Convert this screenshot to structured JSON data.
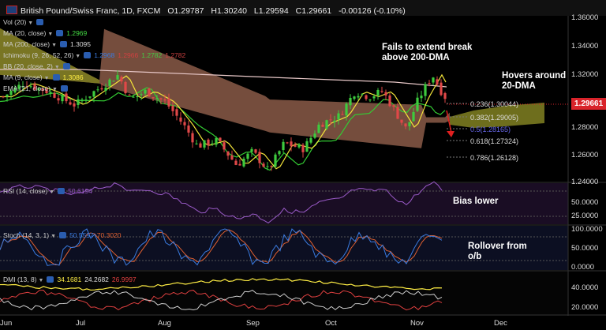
{
  "header": {
    "title": "British Pound/Swiss Franc, 1D, FXCM",
    "ohlc": [
      {
        "k": "O",
        "v": "1.29787"
      },
      {
        "k": "H",
        "v": "1.30240"
      },
      {
        "k": "L",
        "v": "1.29594"
      },
      {
        "k": "C",
        "v": "1.29661"
      }
    ],
    "change": "-0.00126 (-0.10%)"
  },
  "indicators": [
    {
      "label": "Vol (20)",
      "values": []
    },
    {
      "label": "MA (20, close)",
      "values": [
        {
          "v": "1.2969",
          "c": "#44dd44"
        }
      ]
    },
    {
      "label": "MA (200, close)",
      "values": [
        {
          "v": "1.3095",
          "c": "#ddd"
        }
      ]
    },
    {
      "label": "Ichimoku (9, 26, 52, 26)",
      "values": [
        {
          "v": "1.2968",
          "c": "#3a7be0"
        },
        {
          "v": "1.2966",
          "c": "#d04040"
        },
        {
          "v": "1.2782",
          "c": "#44cc44"
        },
        {
          "v": "1.2782",
          "c": "#cc4040"
        }
      ]
    },
    {
      "label": "BB (20, close, 2)",
      "values": []
    },
    {
      "label": "MA (9, close)",
      "values": [
        {
          "v": "1.3086",
          "c": "#ffee44"
        }
      ]
    },
    {
      "label": "EMA (21, close)",
      "values": []
    }
  ],
  "annotations": {
    "fail_line1": "Fails to extend break",
    "fail_line2": "above 200-DMA",
    "hover_line1": "Hovers around",
    "hover_line2": "20-DMA",
    "bias": "Bias lower",
    "rollover1": "Rollover from",
    "rollover2": "o/b"
  },
  "fib": [
    {
      "label": "0.236(1.30044)",
      "c": "#ddd"
    },
    {
      "label": "0.382(1.29005)",
      "c": "#ddd"
    },
    {
      "label": "0.5(1.28165)",
      "c": "#6a6af0"
    },
    {
      "label": "0.618(1.27324)",
      "c": "#ddd"
    },
    {
      "label": "0.786(1.26128)",
      "c": "#ddd"
    }
  ],
  "price_tag": "1.29661",
  "y_axis": [
    "1.36000",
    "1.34000",
    "1.32000",
    "1.28000",
    "1.26000",
    "1.24000"
  ],
  "rsi": {
    "label": "RSI (14, close)",
    "value": "50.6194",
    "ticks": [
      "50.0000",
      "25.0000"
    ]
  },
  "stoch": {
    "label": "Stoch (14, 3, 1)",
    "values": [
      {
        "v": "50.5597",
        "c": "#3a7be0"
      },
      {
        "v": "70.3020",
        "c": "#e06030"
      }
    ],
    "ticks": [
      "100.0000",
      "50.0000",
      "0.0000"
    ]
  },
  "dmi": {
    "label": "DMI (13, 8)",
    "values": [
      {
        "v": "34.1681",
        "c": "#ffee44"
      },
      {
        "v": "24.2682",
        "c": "#ddd"
      },
      {
        "v": "26.9997",
        "c": "#e04040"
      }
    ],
    "ticks": [
      "40.0000",
      "20.0000"
    ]
  },
  "x_axis": [
    "Jun",
    "Jul",
    "Aug",
    "Sep",
    "Oct",
    "Nov",
    "Dec"
  ],
  "colors": {
    "up": "#3ecb3e",
    "down": "#e04848",
    "ma20": "#33cc33",
    "ma200": "#e8c8c8",
    "ma9": "#f2e33a",
    "cloud_bear": "#8a5a48",
    "cloud_bull": "#7a7a20"
  }
}
